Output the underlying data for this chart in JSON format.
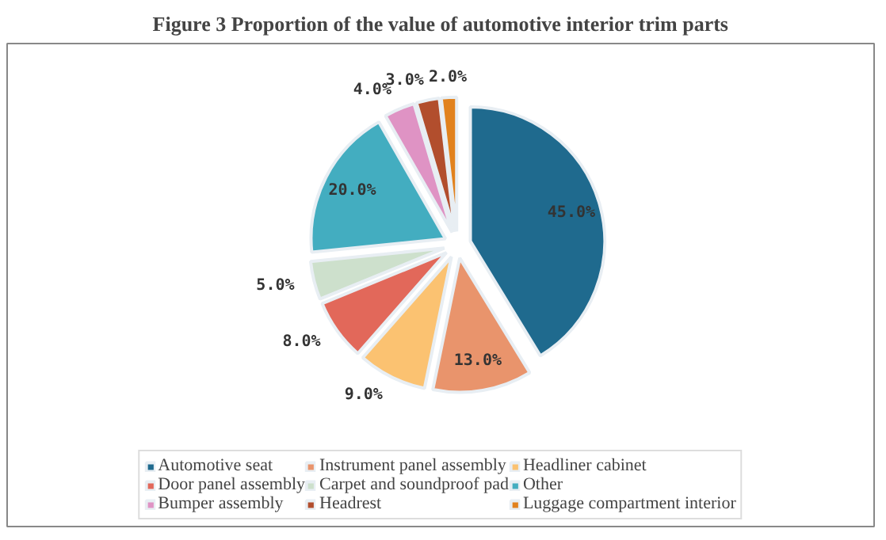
{
  "chart_data": {
    "type": "pie",
    "title": "Figure 3 Proportion of the value of automotive interior trim parts",
    "categories": [
      "Automotive seat",
      "Instrument panel assembly",
      "Headliner cabinet",
      "Door panel assembly",
      "Carpet and soundproof pad",
      "Other",
      "Bumper assembly",
      "Headrest",
      "Luggage compartment interior"
    ],
    "values": [
      45,
      13,
      9,
      8,
      5,
      20,
      4,
      3,
      2
    ],
    "colors": [
      "#1f6a8e",
      "#e9946c",
      "#fbc271",
      "#e2685a",
      "#cde0cc",
      "#43adc0",
      "#df93c4",
      "#b24e2d",
      "#e1821e"
    ],
    "value_labels": [
      "45.0%",
      "13.0%",
      "9.0%",
      "8.0%",
      "5.0%",
      "20.0%",
      "4.0%",
      "3.0%",
      "2.0%"
    ],
    "legend": "bottom"
  }
}
